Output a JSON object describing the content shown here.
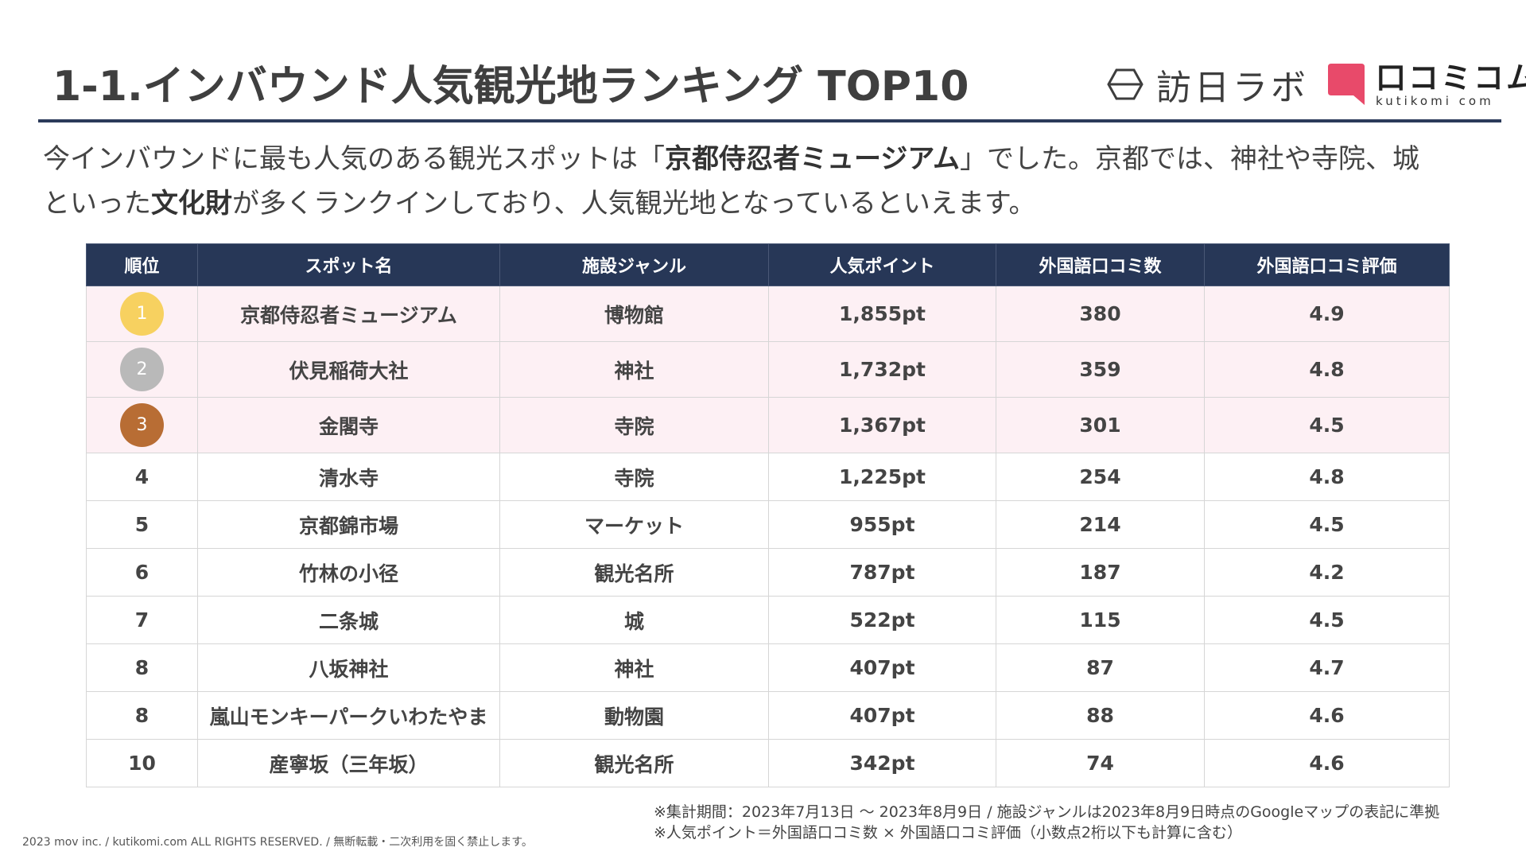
{
  "header": {
    "title": "1-1.インバウンド人気観光地ランキング TOP10",
    "logo_houjin": "訪日ラボ",
    "logo_kutikomi": "口コミコム",
    "logo_kutikomi_sub": "kutikomi com",
    "icons": [
      "hexagon-logo-icon",
      "speech-bubble-logo-icon"
    ]
  },
  "lead": {
    "p1": "今インバウンドに最も人気のある観光スポットは「",
    "p1_bold": "京都侍忍者ミュージアム",
    "p2": "」でした。京都では、神社や寺院、城",
    "p3": "といった",
    "p3_bold": "文化財",
    "p4": "が多くランクインしており、人気観光地となっているといえます。"
  },
  "table": {
    "headers": [
      "順位",
      "スポット名",
      "施設ジャンル",
      "人気ポイント",
      "外国語口コミ数",
      "外国語口コミ評価"
    ],
    "rows": [
      {
        "rank": "1",
        "name": "京都侍忍者ミュージアム",
        "genre": "博物館",
        "points": "1,855pt",
        "reviews": "380",
        "rating": "4.9"
      },
      {
        "rank": "2",
        "name": "伏見稲荷大社",
        "genre": "神社",
        "points": "1,732pt",
        "reviews": "359",
        "rating": "4.8"
      },
      {
        "rank": "3",
        "name": "金閣寺",
        "genre": "寺院",
        "points": "1,367pt",
        "reviews": "301",
        "rating": "4.5"
      },
      {
        "rank": "4",
        "name": "清水寺",
        "genre": "寺院",
        "points": "1,225pt",
        "reviews": "254",
        "rating": "4.8"
      },
      {
        "rank": "5",
        "name": "京都錦市場",
        "genre": "マーケット",
        "points": "955pt",
        "reviews": "214",
        "rating": "4.5"
      },
      {
        "rank": "6",
        "name": "竹林の小径",
        "genre": "観光名所",
        "points": "787pt",
        "reviews": "187",
        "rating": "4.2"
      },
      {
        "rank": "7",
        "name": "二条城",
        "genre": "城",
        "points": "522pt",
        "reviews": "115",
        "rating": "4.5"
      },
      {
        "rank": "8",
        "name": "八坂神社",
        "genre": "神社",
        "points": "407pt",
        "reviews": "87",
        "rating": "4.7"
      },
      {
        "rank": "8",
        "name": "嵐山モンキーパークいわたやま",
        "genre": "動物園",
        "points": "407pt",
        "reviews": "88",
        "rating": "4.6"
      },
      {
        "rank": "10",
        "name": "産寧坂（三年坂）",
        "genre": "観光名所",
        "points": "342pt",
        "reviews": "74",
        "rating": "4.6"
      }
    ],
    "medal_colors": {
      "gold": "#f7d160",
      "silver": "#b9b9b9",
      "bronze": "#b86d34"
    }
  },
  "notes": {
    "line1": "※集計期間：2023年7月13日 ～ 2023年8月9日 / 施設ジャンルは2023年8月9日時点のGoogleマップの表記に準拠",
    "line2": "※人気ポイント＝外国語口コミ数 × 外国語口コミ評価（小数点2桁以下も計算に含む）"
  },
  "footer": {
    "copyright": "2023 mov inc. / kutikomi.com ALL RIGHTS RESERVED. / 無断転載・二次利用を固く禁止します。"
  }
}
